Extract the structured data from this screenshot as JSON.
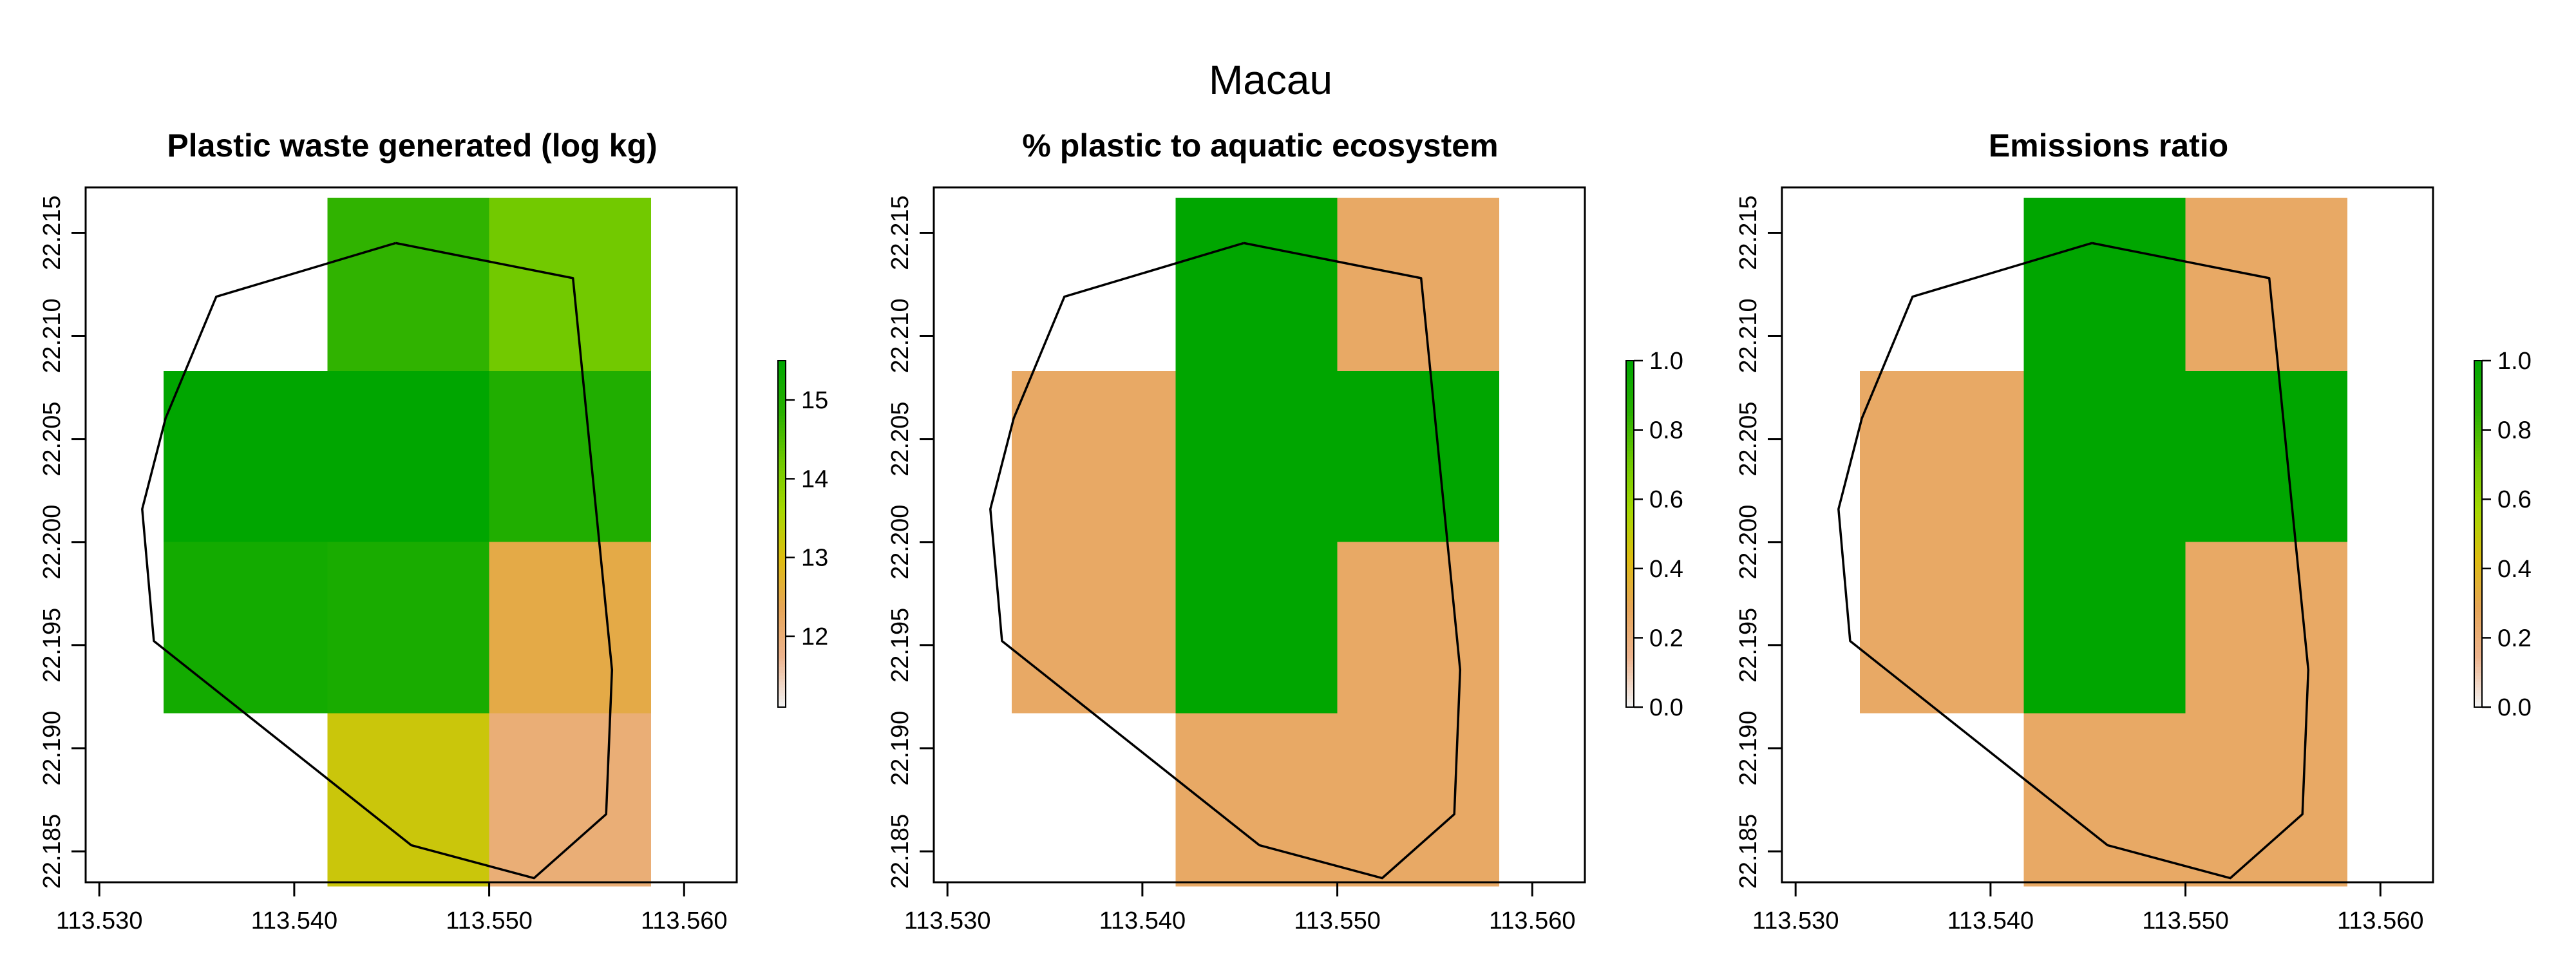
{
  "figure": {
    "title": "Macau"
  },
  "axes": {
    "x_ticks": [
      113.53,
      113.54,
      113.55,
      113.56
    ],
    "y_ticks": [
      22.185,
      22.19,
      22.195,
      22.2,
      22.205,
      22.21,
      22.215
    ],
    "x_tick_labels": [
      "113.530",
      "113.540",
      "113.550",
      "113.560"
    ],
    "y_tick_labels": [
      "22.185",
      "22.190",
      "22.195",
      "22.200",
      "22.205",
      "22.210",
      "22.215"
    ]
  },
  "outline": {
    "coords": [
      [
        113.5452,
        22.2145
      ],
      [
        113.5543,
        22.2128
      ],
      [
        113.5563,
        22.1938
      ],
      [
        113.556,
        22.1868
      ],
      [
        113.5523,
        22.1837
      ],
      [
        113.546,
        22.1853
      ],
      [
        113.5328,
        22.1952
      ],
      [
        113.5322,
        22.2016
      ],
      [
        113.5334,
        22.206
      ],
      [
        113.536,
        22.2119
      ],
      [
        113.5452,
        22.2145
      ]
    ],
    "color": "#000000"
  },
  "chart_data": [
    {
      "type": "heatmap",
      "title": "Plastic waste generated (log kg)",
      "xlim": [
        113.5293,
        113.5627
      ],
      "ylim": [
        22.1835,
        22.2172
      ],
      "cells": [
        {
          "x": [
            113.5417,
            113.55
          ],
          "y": [
            22.2083,
            22.2167
          ],
          "value": 14.8
        },
        {
          "x": [
            113.55,
            113.5583
          ],
          "y": [
            22.2083,
            22.2167
          ],
          "value": 14.2
        },
        {
          "x": [
            113.5333,
            113.55
          ],
          "y": [
            22.2,
            22.2083
          ],
          "value": 15.5
        },
        {
          "x": [
            113.55,
            113.5583
          ],
          "y": [
            22.2,
            22.2083
          ],
          "value": 15.0
        },
        {
          "x": [
            113.5333,
            113.5417
          ],
          "y": [
            22.1917,
            22.2
          ],
          "value": 15.2
        },
        {
          "x": [
            113.5417,
            113.55
          ],
          "y": [
            22.1917,
            22.2
          ],
          "value": 15.1
        },
        {
          "x": [
            113.55,
            113.5583
          ],
          "y": [
            22.1917,
            22.2
          ],
          "value": 12.5
        },
        {
          "x": [
            113.5417,
            113.55
          ],
          "y": [
            22.1833,
            22.1917
          ],
          "value": 13.2
        },
        {
          "x": [
            113.55,
            113.5583
          ],
          "y": [
            22.1833,
            22.1917
          ],
          "value": 12.0
        }
      ],
      "legend": {
        "min": 11.1,
        "max": 15.5,
        "ticks": [
          12,
          13,
          14,
          15
        ],
        "tick_labels": [
          "12",
          "13",
          "14",
          "15"
        ]
      }
    },
    {
      "type": "heatmap",
      "title": "% plastic to aquatic ecosystem",
      "xlim": [
        113.5293,
        113.5627
      ],
      "ylim": [
        22.1835,
        22.2172
      ],
      "cells": [
        {
          "x": [
            113.5417,
            113.55
          ],
          "y": [
            22.2083,
            22.2167
          ],
          "value": 1.0
        },
        {
          "x": [
            113.55,
            113.5583
          ],
          "y": [
            22.2083,
            22.2167
          ],
          "value": 0.25
        },
        {
          "x": [
            113.5333,
            113.5417
          ],
          "y": [
            22.2,
            22.2083
          ],
          "value": 0.25
        },
        {
          "x": [
            113.5417,
            113.55
          ],
          "y": [
            22.2,
            22.2083
          ],
          "value": 1.0
        },
        {
          "x": [
            113.55,
            113.5583
          ],
          "y": [
            22.2,
            22.2083
          ],
          "value": 1.0
        },
        {
          "x": [
            113.5333,
            113.5417
          ],
          "y": [
            22.1917,
            22.2
          ],
          "value": 0.25
        },
        {
          "x": [
            113.5417,
            113.55
          ],
          "y": [
            22.1917,
            22.2
          ],
          "value": 1.0
        },
        {
          "x": [
            113.55,
            113.5583
          ],
          "y": [
            22.1917,
            22.2
          ],
          "value": 0.25
        },
        {
          "x": [
            113.5417,
            113.55
          ],
          "y": [
            22.1833,
            22.1917
          ],
          "value": 0.25
        },
        {
          "x": [
            113.55,
            113.5583
          ],
          "y": [
            22.1833,
            22.1917
          ],
          "value": 0.25
        }
      ],
      "legend": {
        "min": 0.0,
        "max": 1.0,
        "ticks": [
          0.0,
          0.2,
          0.4,
          0.6,
          0.8,
          1.0
        ],
        "tick_labels": [
          "0.0",
          "0.2",
          "0.4",
          "0.6",
          "0.8",
          "1.0"
        ]
      }
    },
    {
      "type": "heatmap",
      "title": "Emissions ratio",
      "xlim": [
        113.5293,
        113.5627
      ],
      "ylim": [
        22.1835,
        22.2172
      ],
      "cells": [
        {
          "x": [
            113.5417,
            113.55
          ],
          "y": [
            22.2083,
            22.2167
          ],
          "value": 1.0
        },
        {
          "x": [
            113.55,
            113.5583
          ],
          "y": [
            22.2083,
            22.2167
          ],
          "value": 0.25
        },
        {
          "x": [
            113.5333,
            113.5417
          ],
          "y": [
            22.2,
            22.2083
          ],
          "value": 0.25
        },
        {
          "x": [
            113.5417,
            113.55
          ],
          "y": [
            22.2,
            22.2083
          ],
          "value": 1.0
        },
        {
          "x": [
            113.55,
            113.5583
          ],
          "y": [
            22.2,
            22.2083
          ],
          "value": 1.0
        },
        {
          "x": [
            113.5333,
            113.5417
          ],
          "y": [
            22.1917,
            22.2
          ],
          "value": 0.25
        },
        {
          "x": [
            113.5417,
            113.55
          ],
          "y": [
            22.1917,
            22.2
          ],
          "value": 1.0
        },
        {
          "x": [
            113.55,
            113.5583
          ],
          "y": [
            22.1917,
            22.2
          ],
          "value": 0.25
        },
        {
          "x": [
            113.5417,
            113.55
          ],
          "y": [
            22.1833,
            22.1917
          ],
          "value": 0.25
        },
        {
          "x": [
            113.55,
            113.5583
          ],
          "y": [
            22.1833,
            22.1917
          ],
          "value": 0.25
        }
      ],
      "legend": {
        "min": 0.0,
        "max": 1.0,
        "ticks": [
          0.0,
          0.2,
          0.4,
          0.6,
          0.8,
          1.0
        ],
        "tick_labels": [
          "0.0",
          "0.2",
          "0.4",
          "0.6",
          "0.8",
          "1.0"
        ]
      }
    }
  ],
  "colormap": {
    "name": "terrain-reversed",
    "stops": [
      "#F2F2F2",
      "#EDB48E",
      "#E6A557",
      "#DDBC10",
      "#A5D800",
      "#6EC800",
      "#28B000",
      "#00A600"
    ]
  }
}
